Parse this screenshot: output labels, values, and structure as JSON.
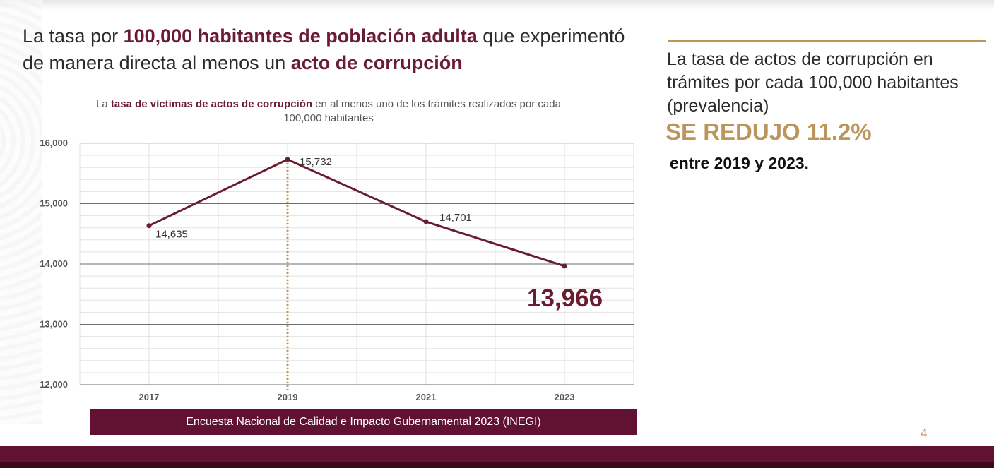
{
  "headline": {
    "part1": "La tasa por ",
    "bold1": "100,000 habitantes de población adulta",
    "part2": " que experimentó de manera directa al menos un ",
    "bold2": "acto de corrupción"
  },
  "chart_title": {
    "part1": "La ",
    "bold": "tasa de víctimas de actos de corrupción",
    "part2": " en al menos uno de los trámites realizados por cada 100,000 habitantes"
  },
  "source": "Encuesta Nacional de Calidad e Impacto Gubernamental 2023 (INEGI)",
  "right": {
    "text": "La tasa de actos de corrupción en trámites por cada 100,000 habitantes (prevalencia)",
    "highlight": "SE REDUJO 11.2%",
    "period": "entre 2019 y 2023."
  },
  "page_number": "4",
  "colors": {
    "primary": "#691c32",
    "gold": "#bc955c",
    "band": "#611232"
  },
  "chart_data": {
    "type": "line",
    "title": "La tasa de víctimas de actos de corrupción en al menos uno de los trámites realizados por cada 100,000 habitantes",
    "categories": [
      "2017",
      "2019",
      "2021",
      "2023"
    ],
    "series": [
      {
        "values": [
          14635,
          15732,
          14701,
          13966
        ]
      }
    ],
    "data_labels": [
      "14,635",
      "15,732",
      "14,701",
      "13,966"
    ],
    "y_ticks": [
      "16,000",
      "15,000",
      "14,000",
      "13,000",
      "12,000"
    ],
    "ylim": [
      12000,
      16000
    ],
    "xlabel": "",
    "ylabel": "",
    "grid": true,
    "highlight_category": "2019",
    "emphasized_label": "13,966"
  }
}
